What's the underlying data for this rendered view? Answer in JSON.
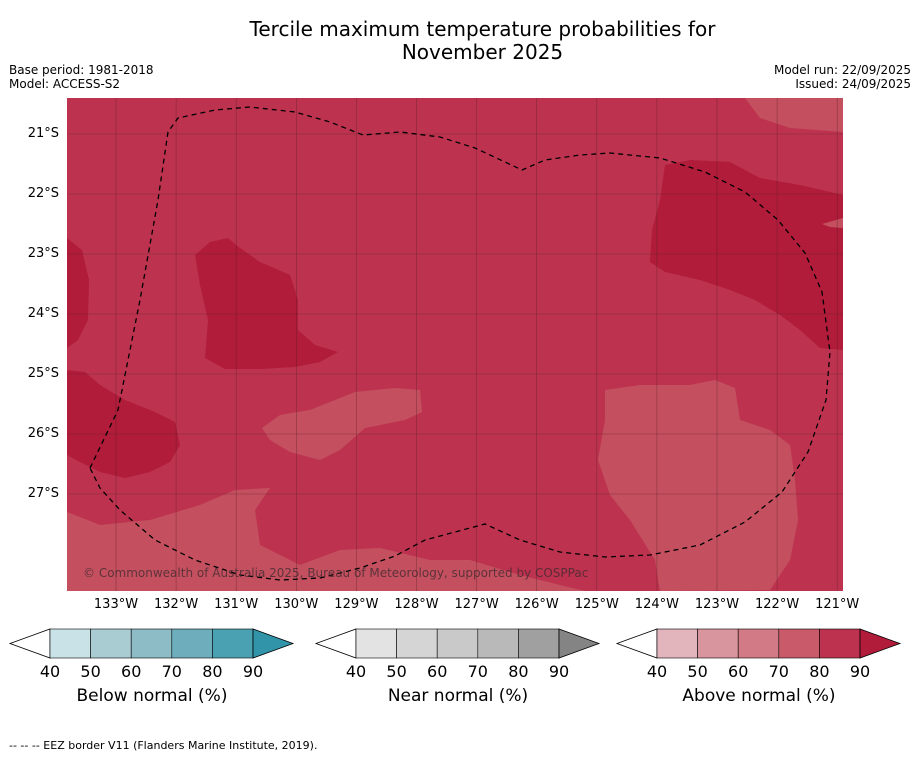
{
  "title": {
    "line1": "Tercile maximum temperature probabilities for",
    "line2": "November 2025"
  },
  "meta": {
    "base_period": "Base period: 1981-2018",
    "model": "Model: ACCESS-S2",
    "model_run": "Model run: 22/09/2025",
    "issued": "Issued: 24/09/2025"
  },
  "map": {
    "latitudes": [
      "21°S",
      "22°S",
      "23°S",
      "24°S",
      "25°S",
      "26°S",
      "27°S"
    ],
    "longitudes": [
      "133°W",
      "132°W",
      "131°W",
      "130°W",
      "129°W",
      "128°W",
      "127°W",
      "126°W",
      "125°W",
      "124°W",
      "123°W",
      "122°W",
      "121°W"
    ],
    "copyright": "© Commonwealth of Australia 2025, Bureau of Meteorology, supported by COSPPac",
    "colors": {
      "above_80_90": "#bd334f",
      "above_90": "#b01c3a",
      "above_70_80": "#c4505f"
    }
  },
  "colorbars": {
    "below": {
      "title": "Below normal (%)",
      "ticks": [
        "40",
        "50",
        "60",
        "70",
        "80",
        "90"
      ],
      "colors": [
        "#ffffff",
        "#c9e2e8",
        "#a9cbd2",
        "#8dbbc6",
        "#6eaebc",
        "#4aa1b2",
        "#3194a8"
      ]
    },
    "near": {
      "title": "Near normal (%)",
      "ticks": [
        "40",
        "50",
        "60",
        "70",
        "80",
        "90"
      ],
      "colors": [
        "#ffffff",
        "#e3e3e3",
        "#d5d5d5",
        "#c9c9c9",
        "#b9b9b9",
        "#a0a0a0",
        "#848484"
      ]
    },
    "above": {
      "title": "Above normal (%)",
      "ticks": [
        "40",
        "50",
        "60",
        "70",
        "80",
        "90"
      ],
      "colors": [
        "#ffffff",
        "#e2b5bc",
        "#d9959e",
        "#d27a85",
        "#c85a69",
        "#bd334f",
        "#b01c3a"
      ]
    }
  },
  "footnote": "--  --  -- EEZ border V11 (Flanders Marine Institute, 2019)."
}
